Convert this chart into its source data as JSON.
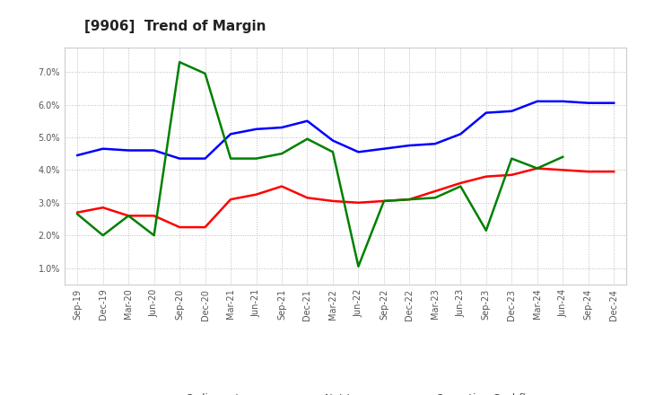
{
  "title": "[9906]  Trend of Margin",
  "x_labels": [
    "Sep-19",
    "Dec-19",
    "Mar-20",
    "Jun-20",
    "Sep-20",
    "Dec-20",
    "Mar-21",
    "Jun-21",
    "Sep-21",
    "Dec-21",
    "Mar-22",
    "Jun-22",
    "Sep-22",
    "Dec-22",
    "Mar-23",
    "Jun-23",
    "Sep-23",
    "Dec-23",
    "Mar-24",
    "Jun-24",
    "Sep-24",
    "Dec-24"
  ],
  "ordinary_income": [
    4.45,
    4.65,
    4.6,
    4.6,
    4.35,
    4.35,
    5.1,
    5.25,
    5.3,
    5.5,
    4.9,
    4.55,
    4.65,
    4.75,
    4.8,
    5.1,
    5.75,
    5.8,
    6.1,
    6.1,
    6.05,
    6.05
  ],
  "net_income": [
    2.7,
    2.85,
    2.6,
    2.6,
    2.25,
    2.25,
    3.1,
    3.25,
    3.5,
    3.15,
    3.05,
    3.0,
    3.05,
    3.1,
    3.35,
    3.6,
    3.8,
    3.85,
    4.05,
    4.0,
    3.95,
    3.95
  ],
  "operating_cashflow": [
    2.65,
    2.0,
    2.6,
    2.0,
    7.3,
    6.95,
    4.35,
    4.35,
    4.5,
    4.95,
    4.55,
    1.05,
    3.05,
    3.1,
    3.15,
    3.5,
    2.15,
    4.35,
    4.05,
    4.4,
    null,
    null
  ],
  "ylim": [
    0.5,
    7.75
  ],
  "yticks": [
    1.0,
    2.0,
    3.0,
    4.0,
    5.0,
    6.0,
    7.0
  ],
  "bg_color": "#ffffff",
  "plot_bg_color": "#ffffff",
  "grid_color": "#bbbbbb",
  "line_color_ordinary": "#0000ff",
  "line_color_net": "#ff0000",
  "line_color_cashflow": "#008000",
  "title_color": "#222222",
  "legend_color": "#444444",
  "title_fontsize": 11,
  "tick_fontsize": 7,
  "legend_fontsize": 8.5
}
